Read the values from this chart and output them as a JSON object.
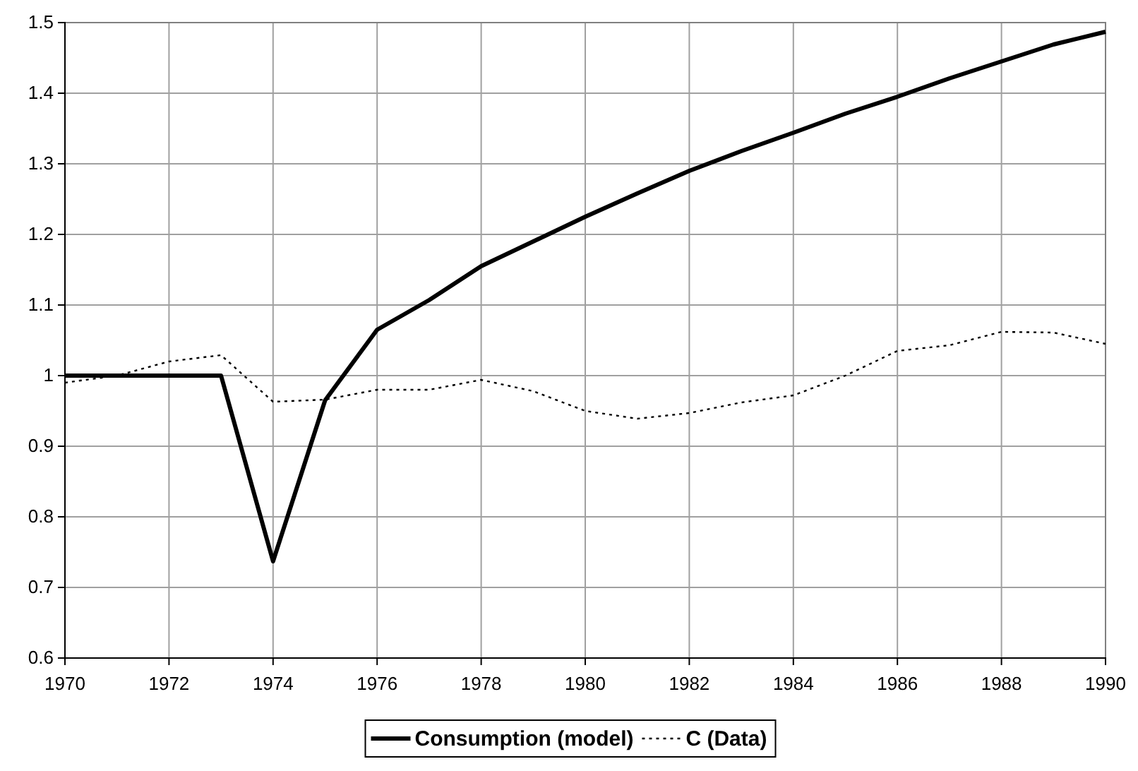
{
  "chart_data": {
    "type": "line",
    "x": [
      1970,
      1971,
      1972,
      1973,
      1974,
      1975,
      1976,
      1977,
      1978,
      1979,
      1980,
      1981,
      1982,
      1983,
      1984,
      1985,
      1986,
      1987,
      1988,
      1989,
      1990
    ],
    "series": [
      {
        "name": "Consumption (model)",
        "color": "#000000",
        "line_style": "solid",
        "values": [
          1.0,
          1.0,
          1.0,
          1.0,
          0.737,
          0.965,
          1.065,
          1.107,
          1.155,
          1.19,
          1.225,
          1.258,
          1.29,
          1.318,
          1.344,
          1.371,
          1.395,
          1.421,
          1.445,
          1.469,
          1.487
        ]
      },
      {
        "name": "C (Data)",
        "color": "#000000",
        "line_style": "dotted",
        "values": [
          0.99,
          1.0,
          1.02,
          1.029,
          0.963,
          0.966,
          0.98,
          0.98,
          0.994,
          0.978,
          0.95,
          0.939,
          0.947,
          0.962,
          0.972,
          1.0,
          1.035,
          1.043,
          1.062,
          1.061,
          1.045
        ]
      }
    ],
    "xlim": [
      1970,
      1990
    ],
    "xticks": [
      1970,
      1972,
      1974,
      1976,
      1978,
      1980,
      1982,
      1984,
      1986,
      1988,
      1990
    ],
    "ylim": [
      0.6,
      1.5
    ],
    "yticks": [
      0.6,
      0.7,
      0.8,
      0.9,
      1,
      1.1,
      1.2,
      1.3,
      1.4,
      1.5
    ],
    "grid": true,
    "legend": "bottom",
    "marker": "none"
  }
}
